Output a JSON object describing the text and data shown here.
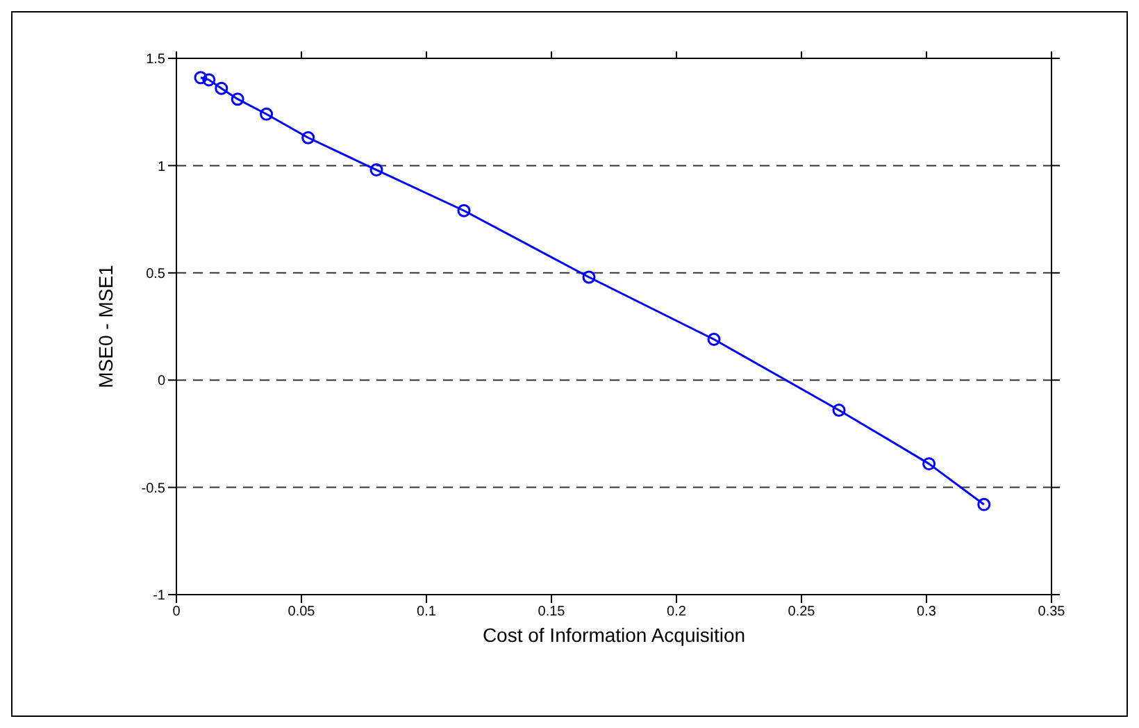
{
  "chart_data": {
    "type": "line",
    "xlabel": "Cost of Information Acquisition",
    "ylabel": "MSE0 - MSE1",
    "x": [
      0.0097,
      0.013,
      0.018,
      0.0245,
      0.036,
      0.0527,
      0.08,
      0.115,
      0.165,
      0.215,
      0.265,
      0.301,
      0.323
    ],
    "series": [
      {
        "color": "#0000ff",
        "values": [
          1.41,
          1.4,
          1.36,
          1.31,
          1.24,
          1.13,
          0.98,
          0.79,
          0.48,
          0.19,
          -0.14,
          -0.39,
          -0.58
        ]
      }
    ],
    "xlim": [
      0,
      0.35
    ],
    "xticks": [
      0,
      0.05,
      0.1,
      0.15,
      0.2,
      0.25,
      0.3,
      0.35
    ],
    "ylim": [
      -1,
      1.5
    ],
    "yticks": [
      -1,
      -0.5,
      0,
      0.5,
      1,
      1.5
    ],
    "grid": "y",
    "marker": "circle",
    "line_style": "solid",
    "legend": false
  }
}
